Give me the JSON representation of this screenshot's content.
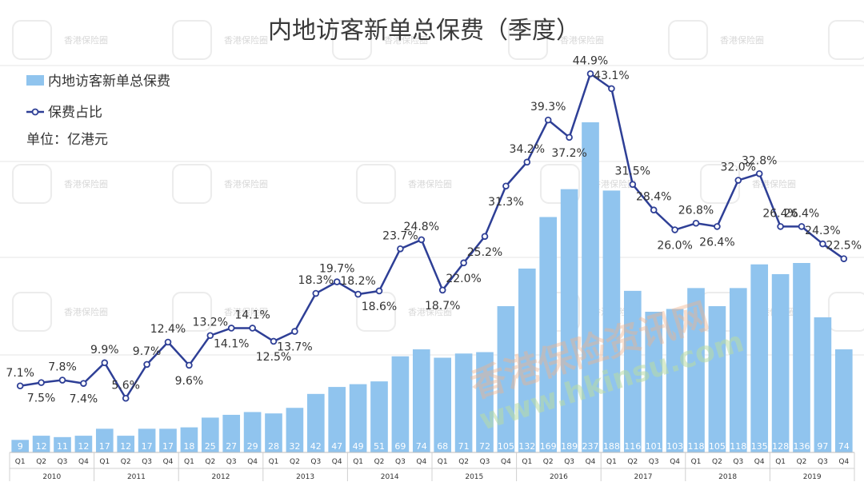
{
  "chart_data": {
    "type": "bar",
    "title": "内地访客新单总保费（季度）",
    "unit_label": "单位：亿港元",
    "legend": [
      "内地访客新单总保费",
      "保费占比"
    ],
    "quarters": [
      "Q1",
      "Q2",
      "Q3",
      "Q4",
      "Q1",
      "Q2",
      "Q3",
      "Q4",
      "Q1",
      "Q2",
      "Q3",
      "Q4",
      "Q1",
      "Q2",
      "Q3",
      "Q4",
      "Q1",
      "Q2",
      "Q3",
      "Q4",
      "Q1",
      "Q2",
      "Q3",
      "Q4",
      "Q1",
      "Q2",
      "Q3",
      "Q4",
      "Q1",
      "Q2",
      "Q3",
      "Q4",
      "Q1",
      "Q2",
      "Q3",
      "Q4",
      "Q1",
      "Q2",
      "Q3",
      "Q4"
    ],
    "years": [
      "2010",
      "2011",
      "2012",
      "2013",
      "2014",
      "2015",
      "2016",
      "2017",
      "2018",
      "2019"
    ],
    "series": [
      {
        "name": "内地访客新单总保费",
        "type": "bar",
        "color": "#90c4ee",
        "values": [
          9,
          12,
          11,
          12,
          17,
          12,
          17,
          17,
          18,
          25,
          27,
          29,
          28,
          32,
          42,
          47,
          49,
          51,
          69,
          74,
          68,
          71,
          72,
          105,
          132,
          169,
          189,
          237,
          188,
          116,
          101,
          103,
          118,
          105,
          118,
          135,
          128,
          136,
          97,
          74
        ]
      },
      {
        "name": "保费占比",
        "type": "line",
        "color": "#2e3f96",
        "values": [
          7.1,
          7.5,
          7.8,
          7.4,
          9.9,
          5.6,
          9.7,
          12.4,
          9.6,
          13.2,
          14.1,
          14.1,
          12.5,
          13.7,
          18.3,
          19.7,
          18.2,
          18.6,
          23.7,
          24.8,
          18.7,
          22.0,
          25.2,
          31.3,
          34.2,
          39.3,
          37.2,
          44.9,
          43.1,
          31.5,
          28.4,
          26.0,
          26.8,
          26.4,
          32.0,
          32.8,
          26.4,
          26.4,
          24.3,
          22.5
        ],
        "labels": [
          "7.1%",
          "7.5%",
          "7.8%",
          "7.4%",
          "9.9%",
          "5.6%",
          "9.7%",
          "12.4%",
          "9.6%",
          "13.2%",
          "14.1%",
          "14.1%",
          "12.5%",
          "13.7%",
          "18.3%",
          "19.7%",
          "18.2%",
          "18.6%",
          "23.7%",
          "24.8%",
          "18.7%",
          "22.0%",
          "25.2%",
          "31.3%",
          "34.2%",
          "39.3%",
          "37.2%",
          "44.9%",
          "43.1%",
          "31.5%",
          "28.4%",
          "26.0%",
          "26.8%",
          "26.4%",
          "32.0%",
          "32.8%",
          "26.4%",
          "26.4%",
          "24.3%",
          "22.5%"
        ]
      }
    ],
    "grid": true
  },
  "watermarks": {
    "square_text": "香港保险圈",
    "big_text": "香港保险资讯网",
    "url_text": "www.hkinsu.com"
  }
}
